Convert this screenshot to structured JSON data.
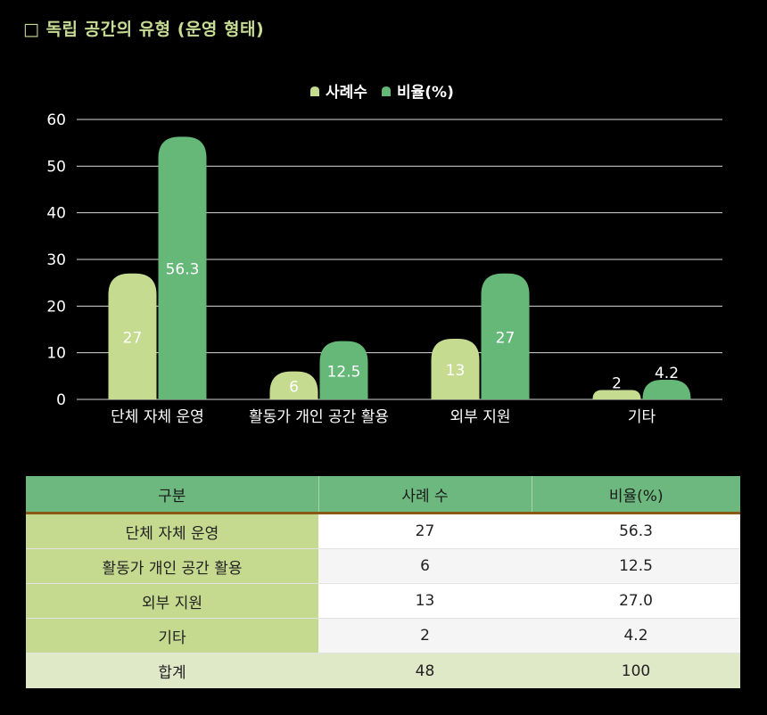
{
  "title": "□ 독립 공간의 유형 (운영 형태)",
  "colors": {
    "series1": "#c5dc90",
    "series2": "#66b878",
    "title": "#c8dc96"
  },
  "chart_data": {
    "type": "bar",
    "categories": [
      "단체 자체 운영",
      "활동가 개인 공간 활용",
      "외부 지원",
      "기타"
    ],
    "series": [
      {
        "name": "사례수",
        "values": [
          27,
          6,
          13,
          2
        ],
        "labels": [
          "27",
          "6",
          "13",
          "2"
        ]
      },
      {
        "name": "비율(%)",
        "values": [
          56.3,
          12.5,
          27,
          4.2
        ],
        "labels": [
          "56.3",
          "12.5",
          "27",
          "4.2"
        ]
      }
    ],
    "yticks": [
      "0",
      "10",
      "20",
      "30",
      "40",
      "50",
      "60"
    ],
    "ylim": [
      0,
      60
    ],
    "grid": true,
    "legend": "top-center"
  },
  "table": {
    "headers": [
      "구분",
      "사례 수",
      "비율(%)"
    ],
    "rows": [
      {
        "label": "단체 자체 운영",
        "count": "27",
        "ratio": "56.3"
      },
      {
        "label": "활동가 개인 공간 활용",
        "count": "6",
        "ratio": "12.5"
      },
      {
        "label": "외부 지원",
        "count": "13",
        "ratio": "27.0"
      },
      {
        "label": "기타",
        "count": "2",
        "ratio": "4.2"
      }
    ],
    "total": {
      "label": "합계",
      "count": "48",
      "ratio": "100"
    }
  }
}
